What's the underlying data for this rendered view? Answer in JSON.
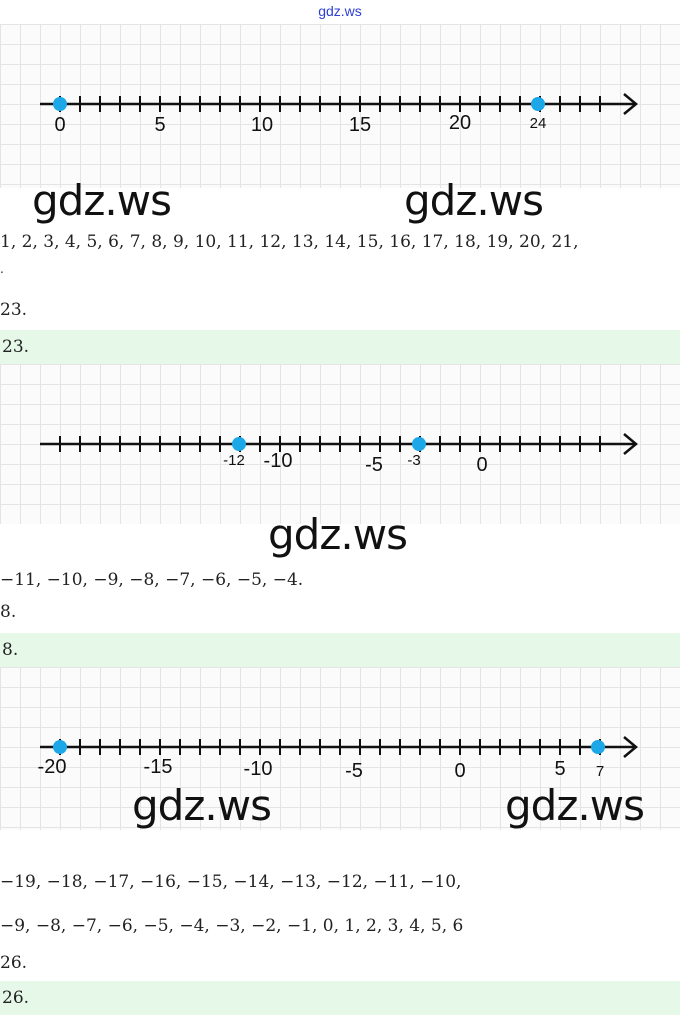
{
  "site_watermark": "gdz.ws",
  "numberlines": [
    {
      "labels": [
        "0",
        "5",
        "10",
        "15",
        "20",
        "24"
      ],
      "watermarks": [
        "gdz.ws",
        "gdz.ws"
      ]
    },
    {
      "labels": [
        "-12",
        "-10",
        "-5",
        "-3",
        "0"
      ],
      "watermarks": [
        "gdz.ws"
      ]
    },
    {
      "labels": [
        "-20",
        "-15",
        "-10",
        "-5",
        "0",
        "5",
        "7"
      ],
      "watermarks": [
        "gdz.ws",
        "gdz.ws"
      ]
    }
  ],
  "text_lines": [
    "1,  2,  3,  4,  5,  6,  7,  8,  9,  10,  11,  12,  13,  14,  15,  16,  17,  18,  19,  20,  21,",
    ".",
    "23.",
    "23.",
    "−11,  −10,  −9,  −8,  −7,  −6,  −5,  −4.",
    "8.",
    "8.",
    "−19,  −18,  −17,  −16,  −15,  −14,  −13,  −12,  −11,  −10,",
    "−9,  −8,  −7,  −6,  −5,  −4,  −3,  −2,  −1,  0,  1,  2,  3,  4,  5,  6",
    "26.",
    "26."
  ]
}
